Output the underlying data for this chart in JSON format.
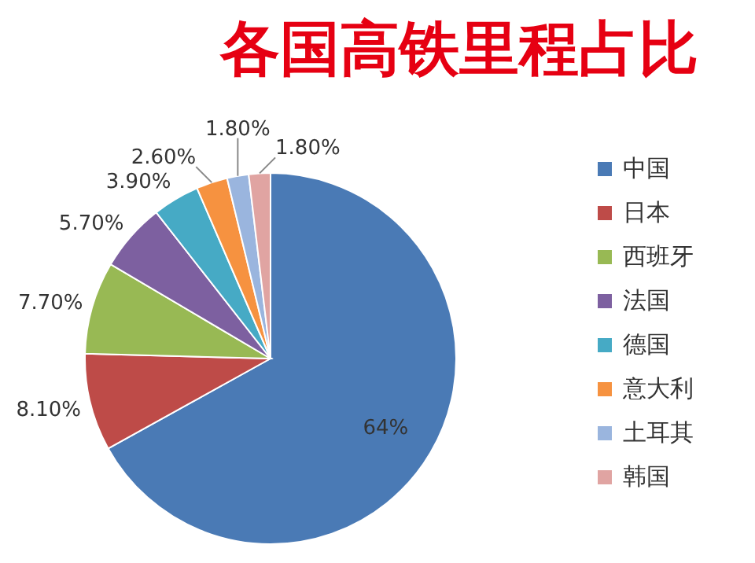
{
  "chart_data": {
    "type": "pie",
    "title": "各国高铁里程占比",
    "categories": [
      "中国",
      "日本",
      "西班牙",
      "法国",
      "德国",
      "意大利",
      "土耳其",
      "韩国"
    ],
    "values": [
      64,
      8.1,
      7.7,
      5.7,
      3.9,
      2.6,
      1.8,
      1.8
    ],
    "value_labels": [
      "64%",
      "8.10%",
      "7.70%",
      "5.70%",
      "3.90%",
      "2.60%",
      "1.80%",
      "1.80%"
    ],
    "colors": [
      "#4a7ab5",
      "#be4b48",
      "#98b954",
      "#7d60a0",
      "#46aac5",
      "#f69240",
      "#9ab5de",
      "#e0a4a2"
    ],
    "legend": "right"
  }
}
